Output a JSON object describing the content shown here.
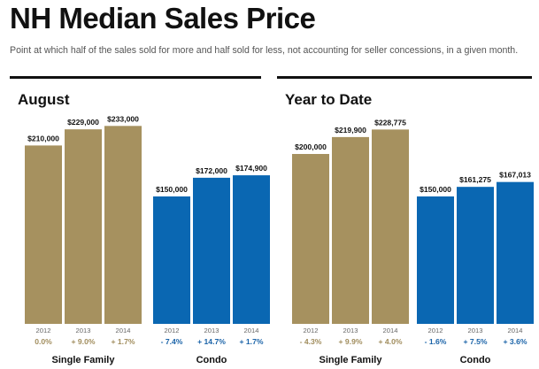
{
  "title": "NH Median Sales Price",
  "subtitle": "Point at which half of the sales sold for more and half sold for less, not accounting for seller concessions, in a given month.",
  "colors": {
    "single_family": "#a6915f",
    "condo": "#0a67b2",
    "change_single_family": "#a08c5c",
    "change_condo": "#1a63a8"
  },
  "chart_data": [
    {
      "type": "bar",
      "title": "August",
      "ylim": [
        0,
        250000
      ],
      "groups": [
        {
          "name": "Single Family",
          "categories": [
            "2012",
            "2013",
            "2014"
          ],
          "values": [
            210000,
            229000,
            233000
          ],
          "value_labels": [
            "$210,000",
            "$229,000",
            "$233,000"
          ],
          "changes": [
            "0.0%",
            "+ 9.0%",
            "+ 1.7%"
          ]
        },
        {
          "name": "Condo",
          "categories": [
            "2012",
            "2013",
            "2014"
          ],
          "values": [
            150000,
            172000,
            174900
          ],
          "value_labels": [
            "$150,000",
            "$172,000",
            "$174,900"
          ],
          "changes": [
            "- 7.4%",
            "+ 14.7%",
            "+ 1.7%"
          ]
        }
      ]
    },
    {
      "type": "bar",
      "title": "Year to Date",
      "ylim": [
        0,
        250000
      ],
      "groups": [
        {
          "name": "Single Family",
          "categories": [
            "2012",
            "2013",
            "2014"
          ],
          "values": [
            200000,
            219900,
            228775
          ],
          "value_labels": [
            "$200,000",
            "$219,900",
            "$228,775"
          ],
          "changes": [
            "- 4.3%",
            "+ 9.9%",
            "+ 4.0%"
          ]
        },
        {
          "name": "Condo",
          "categories": [
            "2012",
            "2013",
            "2014"
          ],
          "values": [
            150000,
            161275,
            167013
          ],
          "value_labels": [
            "$150,000",
            "$161,275",
            "$167,013"
          ],
          "changes": [
            "- 1.6%",
            "+ 7.5%",
            "+ 3.6%"
          ]
        }
      ]
    }
  ]
}
